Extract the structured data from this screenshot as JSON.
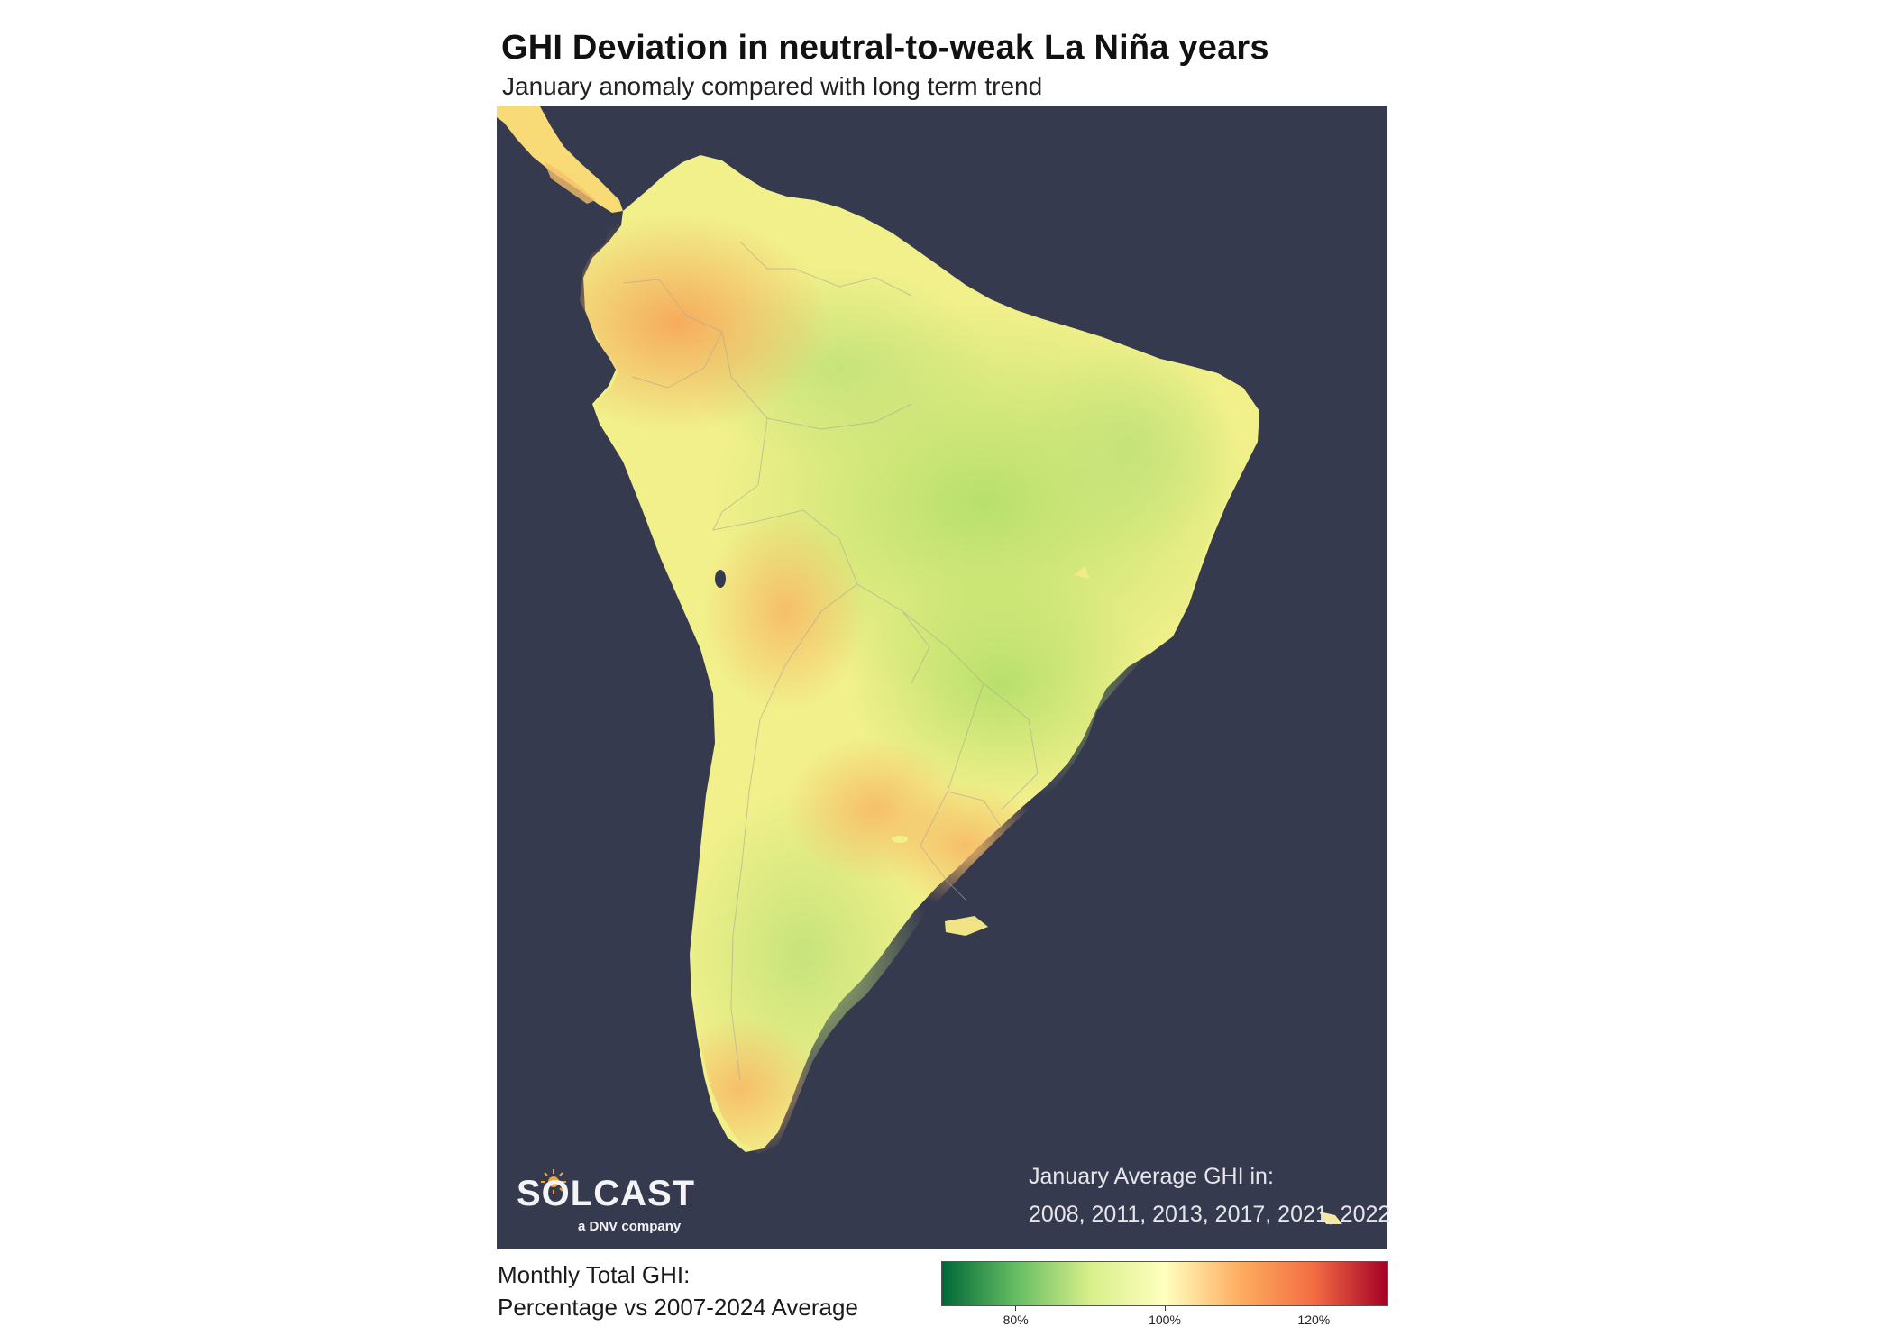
{
  "title": "GHI Deviation in neutral-to-weak La Niña years",
  "subtitle": "January anomaly compared with long term trend",
  "map": {
    "background": "#363a4e",
    "region": "South America"
  },
  "annotation": {
    "line1": "January Average GHI in:",
    "line2": "2008, 2011, 2013, 2017, 2021, 2022"
  },
  "logo": {
    "word": "SOLCAST",
    "sub": "a DNV company",
    "icon": "sun-logo-icon"
  },
  "legend": {
    "line1": "Monthly Total GHI:",
    "line2": "Percentage vs 2007-2024 Average",
    "range": [
      70,
      130
    ],
    "ticks": [
      {
        "value": 80,
        "label": "80%"
      },
      {
        "value": 100,
        "label": "100%"
      },
      {
        "value": 120,
        "label": "120%"
      }
    ],
    "colors": [
      "#006837",
      "#66bd63",
      "#d9ef8b",
      "#ffffbf",
      "#fdae61",
      "#f46d43",
      "#a50026"
    ]
  }
}
